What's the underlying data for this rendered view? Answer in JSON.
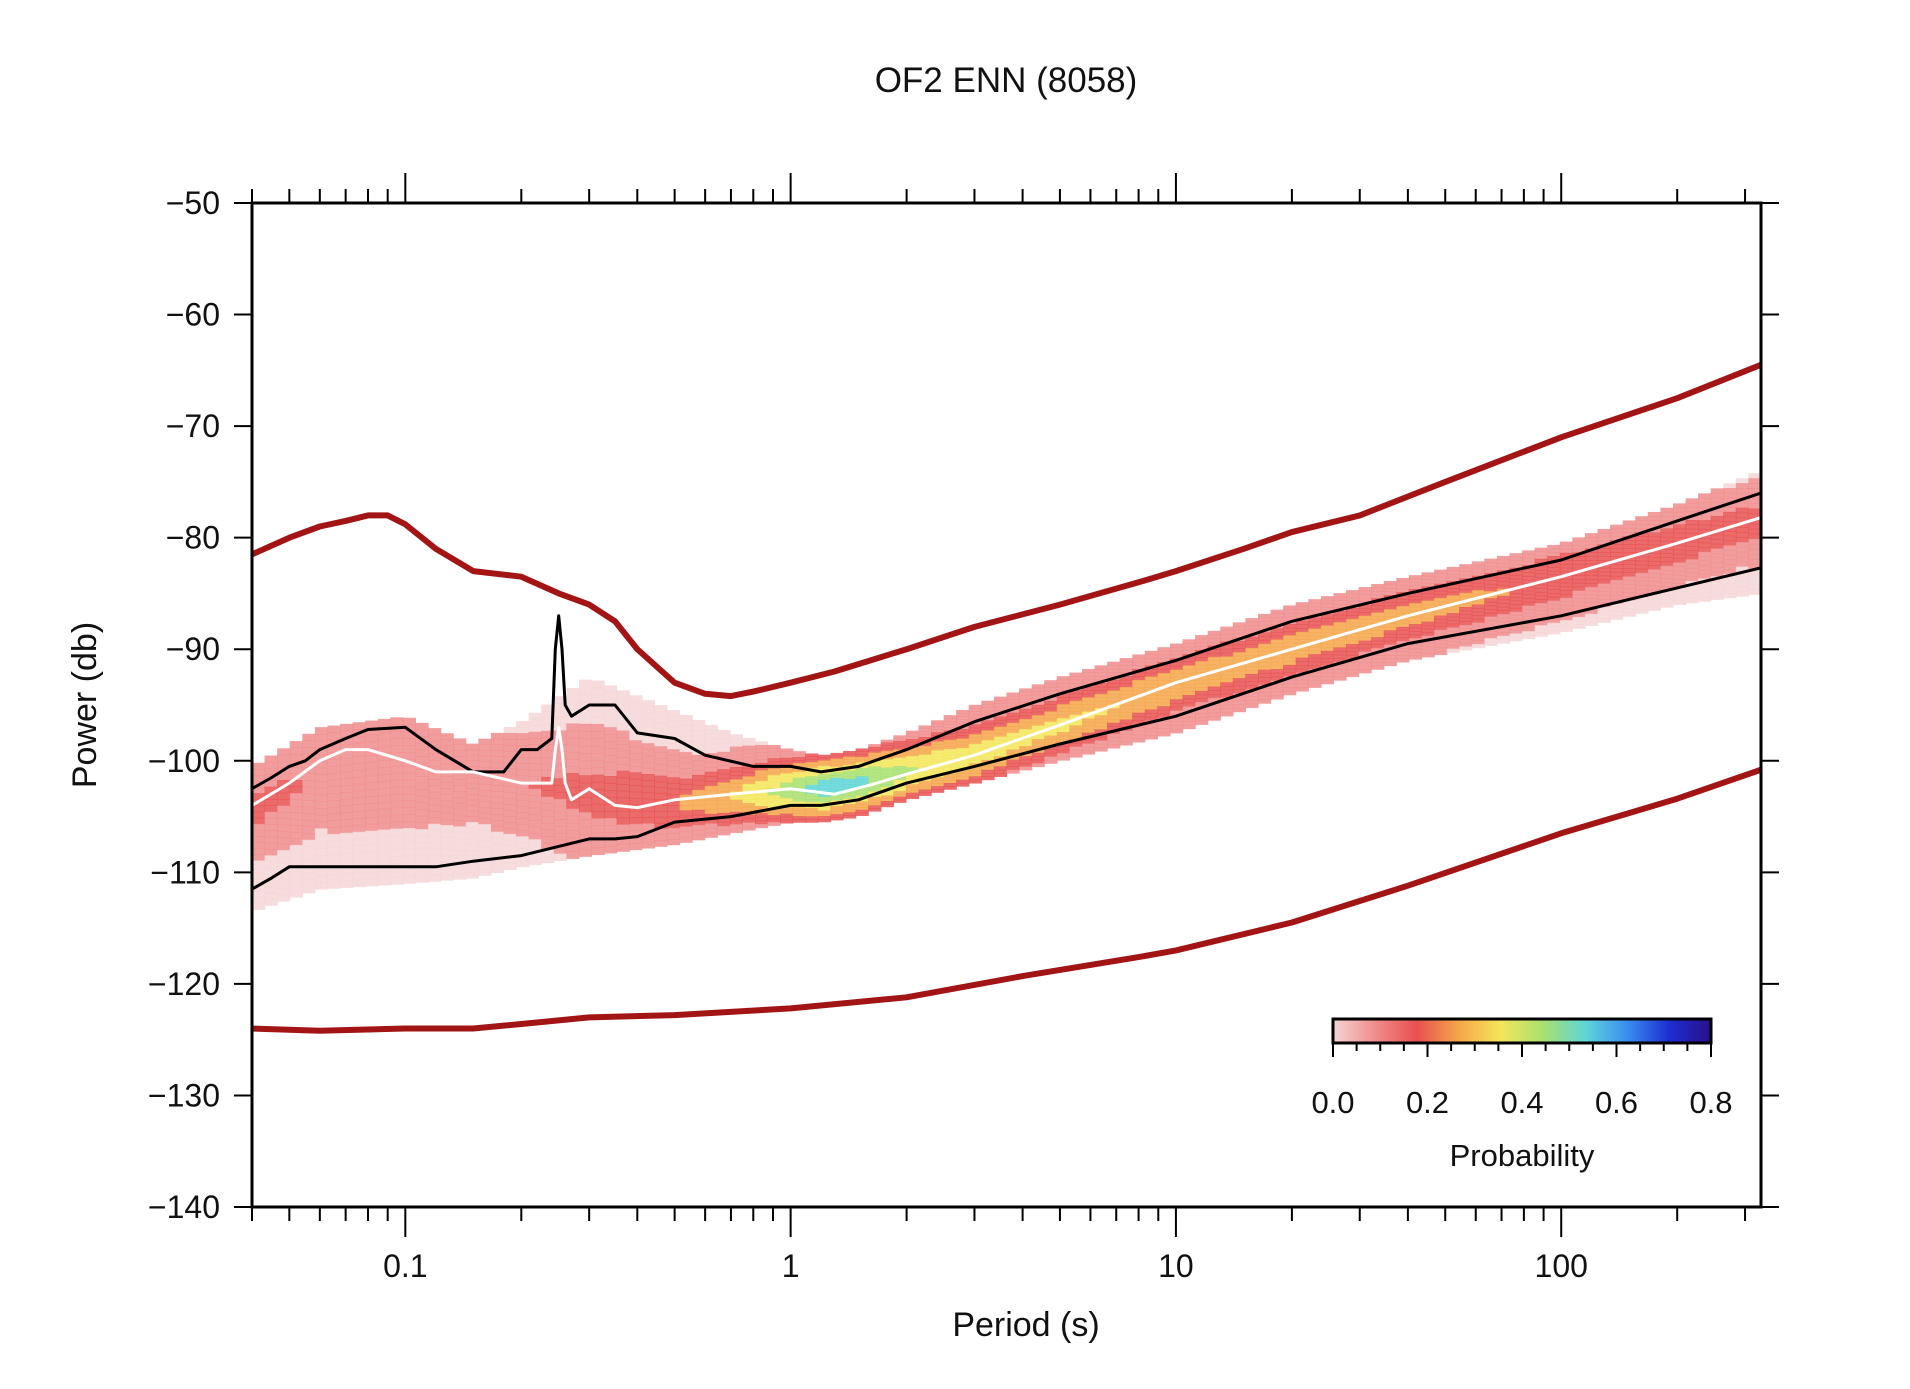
{
  "chart_data": {
    "type": "line",
    "title": "OF2 ENN (8058)",
    "xlabel": "Period (s)",
    "ylabel": "Power (db)",
    "xscale": "log",
    "xlim": [
      0.04,
      330
    ],
    "ylim": [
      -140,
      -50
    ],
    "xticks": [
      {
        "value": 0.1,
        "label": "0.1"
      },
      {
        "value": 1,
        "label": "1"
      },
      {
        "value": 10,
        "label": "10"
      },
      {
        "value": 100,
        "label": "100"
      }
    ],
    "yticks": [
      {
        "value": -50,
        "label": "−50"
      },
      {
        "value": -60,
        "label": "−60"
      },
      {
        "value": -70,
        "label": "−70"
      },
      {
        "value": -80,
        "label": "−80"
      },
      {
        "value": -90,
        "label": "−90"
      },
      {
        "value": -100,
        "label": "−100"
      },
      {
        "value": -110,
        "label": "−110"
      },
      {
        "value": -120,
        "label": "−120"
      },
      {
        "value": -130,
        "label": "−130"
      },
      {
        "value": -140,
        "label": "−140"
      }
    ],
    "grid": false,
    "series": [
      {
        "key": "nhnm",
        "color": "#a31515",
        "x": [
          0.04,
          0.05,
          0.06,
          0.07,
          0.08,
          0.09,
          0.1,
          0.12,
          0.15,
          0.2,
          0.25,
          0.3,
          0.35,
          0.4,
          0.5,
          0.6,
          0.7,
          0.8,
          1,
          1.3,
          2,
          3,
          5,
          8,
          10,
          15,
          20,
          30,
          50,
          100,
          200,
          330
        ],
        "y": [
          -81.5,
          -80,
          -79,
          -78.5,
          -78,
          -78,
          -78.8,
          -81,
          -83,
          -83.5,
          -85,
          -86,
          -87.5,
          -90,
          -93,
          -94,
          -94.2,
          -93.8,
          -93,
          -92,
          -90,
          -88,
          -86,
          -84,
          -83,
          -81,
          -79.5,
          -78,
          -75,
          -71,
          -67.5,
          -64.5
        ]
      },
      {
        "key": "nlnm",
        "color": "#a31515",
        "x": [
          0.04,
          0.06,
          0.1,
          0.15,
          0.2,
          0.3,
          0.5,
          1,
          2,
          4,
          8,
          10,
          20,
          40,
          100,
          200,
          330
        ],
        "y": [
          -124,
          -124.2,
          -124,
          -124,
          -123.6,
          -123,
          -122.8,
          -122.2,
          -121.2,
          -119.3,
          -117.6,
          -117,
          -114.5,
          -111.2,
          -106.5,
          -103.4,
          -100.8
        ]
      },
      {
        "key": "p90",
        "color": "#000000",
        "x": [
          0.04,
          0.045,
          0.05,
          0.055,
          0.06,
          0.07,
          0.08,
          0.1,
          0.12,
          0.15,
          0.18,
          0.2,
          0.22,
          0.24,
          0.245,
          0.25,
          0.255,
          0.26,
          0.27,
          0.3,
          0.35,
          0.4,
          0.5,
          0.6,
          0.8,
          1,
          1.2,
          1.5,
          2,
          3,
          5,
          10,
          20,
          40,
          100,
          200,
          330
        ],
        "y": [
          -102.5,
          -101.5,
          -100.5,
          -100,
          -99,
          -98,
          -97.2,
          -97,
          -99,
          -101,
          -101,
          -99,
          -99,
          -98,
          -90,
          -87,
          -90,
          -95,
          -96,
          -95,
          -95,
          -97.5,
          -98,
          -99.5,
          -100.5,
          -100.5,
          -101,
          -100.5,
          -99,
          -96.5,
          -94,
          -91,
          -87.5,
          -85,
          -82,
          -78.5,
          -76
        ]
      },
      {
        "key": "p10",
        "color": "#000000",
        "x": [
          0.04,
          0.045,
          0.05,
          0.055,
          0.06,
          0.1,
          0.12,
          0.15,
          0.2,
          0.3,
          0.35,
          0.4,
          0.5,
          0.7,
          1,
          1.2,
          1.5,
          2,
          3,
          5,
          10,
          20,
          40,
          100,
          200,
          330
        ],
        "y": [
          -111.5,
          -110.5,
          -109.5,
          -109.5,
          -109.5,
          -109.5,
          -109.5,
          -109,
          -108.5,
          -107,
          -107,
          -106.8,
          -105.5,
          -105,
          -104,
          -104,
          -103.5,
          -102,
          -100.5,
          -98.5,
          -96,
          -92.5,
          -89.5,
          -87,
          -84.5,
          -82.7
        ]
      },
      {
        "key": "mode",
        "color": "#ffffff",
        "x": [
          0.04,
          0.05,
          0.06,
          0.07,
          0.08,
          0.1,
          0.12,
          0.15,
          0.2,
          0.24,
          0.245,
          0.25,
          0.255,
          0.26,
          0.27,
          0.3,
          0.35,
          0.4,
          0.5,
          0.7,
          1,
          1.3,
          1.6,
          2,
          3,
          5,
          10,
          20,
          40,
          100,
          200,
          330
        ],
        "y": [
          -104,
          -102,
          -100,
          -99,
          -99,
          -100,
          -101,
          -101,
          -102,
          -102,
          -99,
          -97,
          -99,
          -102,
          -103.5,
          -102.5,
          -104,
          -104.2,
          -103.5,
          -103,
          -102.5,
          -103,
          -102.2,
          -101.2,
          -99.5,
          -96.8,
          -93,
          -90,
          -87,
          -83.5,
          -80.5,
          -78.2
        ]
      }
    ],
    "pdf_band": {
      "colors": [
        "#f5d6d6",
        "#f08c8c",
        "#e85050",
        "#f4a64a",
        "#f3e65a",
        "#a8e070",
        "#5fd6d6",
        "#3a8ef0",
        "#1c2fd0",
        "#2a0f8a"
      ],
      "x": [
        0.04,
        0.06,
        0.1,
        0.15,
        0.2,
        0.3,
        0.5,
        0.7,
        1,
        1.2,
        1.5,
        2,
        3,
        5,
        10,
        20,
        40,
        100,
        200,
        330
      ],
      "upper": [
        -102,
        -98.5,
        -97.5,
        -100,
        -98,
        -94,
        -97,
        -99,
        -100.5,
        -101,
        -100.5,
        -99,
        -96.5,
        -94,
        -91,
        -87.5,
        -85,
        -82,
        -78.5,
        -75.5
      ],
      "lower": [
        -112,
        -110,
        -109.5,
        -109,
        -108,
        -107,
        -106,
        -105,
        -104,
        -104,
        -103.5,
        -102,
        -100.5,
        -98.5,
        -96,
        -92.5,
        -89.5,
        -87,
        -84.5,
        -83.5
      ],
      "core": [
        -104.5,
        -101,
        -100.5,
        -101.5,
        -102,
        -103,
        -103.8,
        -103.2,
        -102.6,
        -102.5,
        -102,
        -101,
        -99.5,
        -96.8,
        -93.2,
        -90,
        -87,
        -83.5,
        -80.5,
        -78.5
      ],
      "peak_prob": [
        0.12,
        0.1,
        0.1,
        0.1,
        0.1,
        0.12,
        0.18,
        0.28,
        0.42,
        0.5,
        0.48,
        0.38,
        0.32,
        0.3,
        0.26,
        0.24,
        0.22,
        0.18,
        0.16,
        0.14
      ]
    },
    "colorbar": {
      "label": "Probability",
      "range": [
        0,
        0.8
      ],
      "ticks": [
        {
          "value": 0.0,
          "label": "0.0"
        },
        {
          "value": 0.2,
          "label": "0.2"
        },
        {
          "value": 0.4,
          "label": "0.4"
        },
        {
          "value": 0.6,
          "label": "0.6"
        },
        {
          "value": 0.8,
          "label": "0.8"
        }
      ],
      "placement": "bottom-right inside plot"
    }
  }
}
